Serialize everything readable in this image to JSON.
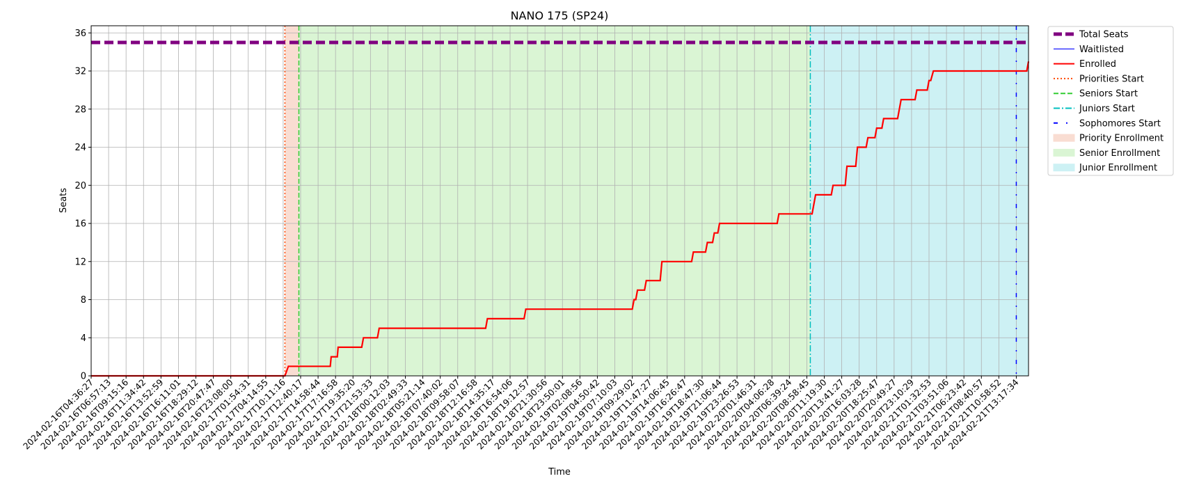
{
  "chart_data": {
    "type": "line",
    "title": "NANO 175 (SP24)",
    "xlabel": "Time",
    "ylabel": "Seats",
    "ylim": [
      0,
      36.75
    ],
    "y_ticks": [
      0,
      4,
      8,
      12,
      16,
      20,
      24,
      28,
      32,
      36
    ],
    "grid": true,
    "legend_placement": "outside-right",
    "x_tick_labels": [
      "2024-02-16T04:36:27",
      "2024-02-16T06:57:13",
      "2024-02-16T09:15:16",
      "2024-02-16T11:34:42",
      "2024-02-16T13:52:59",
      "2024-02-16T16:11:01",
      "2024-02-16T18:29:12",
      "2024-02-16T20:47:47",
      "2024-02-16T23:08:00",
      "2024-02-17T01:54:31",
      "2024-02-17T04:14:55",
      "2024-02-17T10:11:16",
      "2024-02-17T12:40:17",
      "2024-02-17T14:58:44",
      "2024-02-17T17:16:58",
      "2024-02-17T19:35:20",
      "2024-02-17T21:53:33",
      "2024-02-18T00:12:03",
      "2024-02-18T02:49:33",
      "2024-02-18T05:21:14",
      "2024-02-18T07:40:02",
      "2024-02-18T09:58:07",
      "2024-02-18T12:16:58",
      "2024-02-18T14:35:17",
      "2024-02-18T16:54:06",
      "2024-02-18T19:12:57",
      "2024-02-18T21:30:56",
      "2024-02-18T23:50:01",
      "2024-02-19T02:08:56",
      "2024-02-19T04:50:42",
      "2024-02-19T07:10:03",
      "2024-02-19T09:29:02",
      "2024-02-19T11:47:27",
      "2024-02-19T14:06:45",
      "2024-02-19T16:26:47",
      "2024-02-19T18:47:30",
      "2024-02-19T21:06:44",
      "2024-02-19T23:26:53",
      "2024-02-20T01:46:31",
      "2024-02-20T04:06:28",
      "2024-02-20T06:39:24",
      "2024-02-20T08:58:45",
      "2024-02-20T11:19:30",
      "2024-02-20T13:41:27",
      "2024-02-20T16:03:28",
      "2024-02-20T18:25:47",
      "2024-02-20T20:49:27",
      "2024-02-20T23:10:29",
      "2024-02-21T01:32:53",
      "2024-02-21T03:51:06",
      "2024-02-21T06:23:42",
      "2024-02-21T08:40:57",
      "2024-02-21T10:58:52",
      "2024-02-21T13:17:34"
    ],
    "x_range": [
      0,
      53.7
    ],
    "total_seats": 35,
    "series": [
      {
        "name": "Total Seats",
        "color": "#800080",
        "style": "dashed-thick",
        "x": [
          0,
          53.7
        ],
        "y": [
          35,
          35
        ]
      },
      {
        "name": "Waitlisted",
        "color": "#0000ff",
        "style": "solid-thin",
        "x": [],
        "y": []
      },
      {
        "name": "Enrolled",
        "color": "#ff0000",
        "style": "solid",
        "x": [
          0,
          11.1,
          11.3,
          13.7,
          13.75,
          14.1,
          14.15,
          15.5,
          15.6,
          16.4,
          16.5,
          16.8,
          16.9,
          22.6,
          22.7,
          24.8,
          24.9,
          31.0,
          31.1,
          31.2,
          31.3,
          31.7,
          31.8,
          32.6,
          32.7,
          34.4,
          34.5,
          35.2,
          35.3,
          35.6,
          35.7,
          35.9,
          36.0,
          36.2,
          36.3,
          39.3,
          39.4,
          41.3,
          41.5,
          42.4,
          42.5,
          43.2,
          43.3,
          43.8,
          43.9,
          44.4,
          44.5,
          44.9,
          45.0,
          45.3,
          45.4,
          45.6,
          45.7,
          46.2,
          46.4,
          47.2,
          47.3,
          47.9,
          48.0,
          48.1,
          48.25,
          53.6,
          53.7
        ],
        "y": [
          0,
          0,
          1,
          1,
          2,
          2,
          3,
          3,
          4,
          4,
          5,
          5,
          5,
          5,
          6,
          6,
          7,
          7,
          8,
          8,
          9,
          9,
          10,
          10,
          12,
          12,
          13,
          13,
          14,
          14,
          15,
          15,
          16,
          16,
          16,
          16,
          17,
          17,
          19,
          19,
          20,
          20,
          22,
          22,
          24,
          24,
          25,
          25,
          26,
          26,
          27,
          27,
          27,
          27,
          29,
          29,
          30,
          30,
          31,
          31,
          32,
          32,
          33
        ]
      }
    ],
    "vertical_lines": [
      {
        "name": "Priorities Start",
        "x": 11.1,
        "color": "#ff4500",
        "style": "dotted"
      },
      {
        "name": "Seniors Start",
        "x": 11.9,
        "color": "#32cd32",
        "style": "dashed"
      },
      {
        "name": "Juniors Start",
        "x": 41.2,
        "color": "#00bfbf",
        "style": "dashdot"
      },
      {
        "name": "Sophomores Start",
        "x": 53.0,
        "color": "#0000ff",
        "style": "dashdotsparse"
      }
    ],
    "shaded_regions": [
      {
        "name": "Priority Enrollment",
        "x_start": 11.1,
        "x_end": 11.9,
        "color": "#f9ddd2"
      },
      {
        "name": "Senior Enrollment",
        "x_start": 11.9,
        "x_end": 41.2,
        "color": "#daf5d4"
      },
      {
        "name": "Junior Enrollment",
        "x_start": 41.2,
        "x_end": 53.7,
        "color": "#cdf1f4"
      }
    ],
    "legend": [
      "Total Seats",
      "Waitlisted",
      "Enrolled",
      "Priorities Start",
      "Seniors Start",
      "Juniors Start",
      "Sophomores Start",
      "Priority Enrollment",
      "Senior Enrollment",
      "Junior Enrollment"
    ]
  }
}
